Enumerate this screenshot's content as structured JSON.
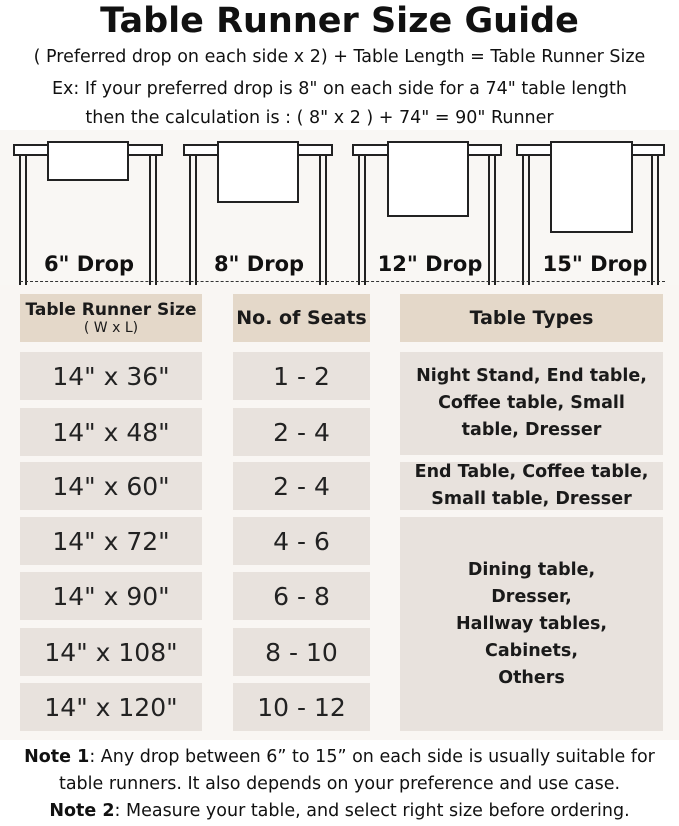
{
  "title": "Table Runner Size Guide",
  "formula": "( Preferred drop on each side x 2) + Table Length = Table Runner Size",
  "example_line1": "Ex: If your preferred drop is 8\" on each side for a 74\" table length",
  "example_line2": "then the calculation is : ( 8\" x 2 ) + 74\" = 90\" Runner",
  "drops": [
    {
      "label": "6\" Drop",
      "inches": 6
    },
    {
      "label": "8\" Drop",
      "inches": 8
    },
    {
      "label": "12\" Drop",
      "inches": 12
    },
    {
      "label": "15\" Drop",
      "inches": 15
    }
  ],
  "headers": {
    "size": "Table Runner Size",
    "size_sub": "( W x L)",
    "seats": "No. of Seats",
    "types": "Table Types"
  },
  "rows": [
    {
      "size": "14\" x 36\"",
      "seats": "1 - 2"
    },
    {
      "size": "14\" x 48\"",
      "seats": "2 - 4"
    },
    {
      "size": "14\" x 60\"",
      "seats": "2 - 4"
    },
    {
      "size": "14\" x 72\"",
      "seats": "4 - 6"
    },
    {
      "size": "14\" x 90\"",
      "seats": "6 - 8"
    },
    {
      "size": "14\" x 108\"",
      "seats": "8 - 10"
    },
    {
      "size": "14\" x 120\"",
      "seats": "10 - 12"
    }
  ],
  "table_types": [
    "Night Stand, End table, Coffee table, Small table, Dresser",
    "End Table, Coffee table, Small table, Dresser",
    "Dining table, Dresser, Hallway tables, Cabinets, Others"
  ],
  "notes": {
    "note1_label": "Note 1",
    "note1_text": ": Any drop between 6” to 15” on each side is usually suitable for",
    "note1_text2": "table runners. It also depends on your preference and use case.",
    "note2_label": "Note 2",
    "note2_text": ": Measure your table, and select right size before ordering."
  },
  "colors": {
    "header_cell": "#e4d8c9",
    "body_cell": "#e8e2dd",
    "background": "#f9f6f3"
  }
}
